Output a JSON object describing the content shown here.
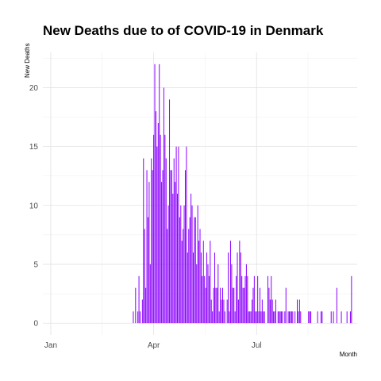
{
  "chart_data": {
    "type": "bar",
    "title": "New Deaths due to of COVID-19 in Denmark",
    "xlabel": "Month",
    "ylabel": "New Deaths",
    "color": "#8b00ff",
    "ylim": [
      -1,
      23
    ],
    "yticks": [
      0,
      5,
      10,
      15,
      20
    ],
    "xlim": [
      "2019-12-25",
      "2020-09-28"
    ],
    "xticks": [
      {
        "date": "2020-01-01",
        "label": "Jan"
      },
      {
        "date": "2020-04-01",
        "label": "Apr"
      },
      {
        "date": "2020-07-01",
        "label": "Jul"
      }
    ],
    "grid": true,
    "x": [
      "2020-03-14",
      "2020-03-15",
      "2020-03-16",
      "2020-03-17",
      "2020-03-18",
      "2020-03-19",
      "2020-03-20",
      "2020-03-21",
      "2020-03-22",
      "2020-03-23",
      "2020-03-24",
      "2020-03-25",
      "2020-03-26",
      "2020-03-27",
      "2020-03-28",
      "2020-03-29",
      "2020-03-30",
      "2020-03-31",
      "2020-04-01",
      "2020-04-02",
      "2020-04-03",
      "2020-04-04",
      "2020-04-05",
      "2020-04-06",
      "2020-04-07",
      "2020-04-08",
      "2020-04-09",
      "2020-04-10",
      "2020-04-11",
      "2020-04-12",
      "2020-04-13",
      "2020-04-14",
      "2020-04-15",
      "2020-04-16",
      "2020-04-17",
      "2020-04-18",
      "2020-04-19",
      "2020-04-20",
      "2020-04-21",
      "2020-04-22",
      "2020-04-23",
      "2020-04-24",
      "2020-04-25",
      "2020-04-26",
      "2020-04-27",
      "2020-04-28",
      "2020-04-29",
      "2020-04-30",
      "2020-05-01",
      "2020-05-02",
      "2020-05-03",
      "2020-05-04",
      "2020-05-05",
      "2020-05-06",
      "2020-05-07",
      "2020-05-08",
      "2020-05-09",
      "2020-05-10",
      "2020-05-11",
      "2020-05-12",
      "2020-05-13",
      "2020-05-14",
      "2020-05-15",
      "2020-05-16",
      "2020-05-17",
      "2020-05-18",
      "2020-05-19",
      "2020-05-20",
      "2020-05-21",
      "2020-05-22",
      "2020-05-23",
      "2020-05-24",
      "2020-05-25",
      "2020-05-26",
      "2020-05-27",
      "2020-05-28",
      "2020-05-29",
      "2020-05-30",
      "2020-05-31",
      "2020-06-01",
      "2020-06-02",
      "2020-06-03",
      "2020-06-04",
      "2020-06-05",
      "2020-06-06",
      "2020-06-07",
      "2020-06-08",
      "2020-06-09",
      "2020-06-10",
      "2020-06-11",
      "2020-06-12",
      "2020-06-13",
      "2020-06-14",
      "2020-06-15",
      "2020-06-16",
      "2020-06-17",
      "2020-06-18",
      "2020-06-19",
      "2020-06-20",
      "2020-06-21",
      "2020-06-22",
      "2020-06-23",
      "2020-06-24",
      "2020-06-25",
      "2020-06-26",
      "2020-06-27",
      "2020-06-28",
      "2020-06-29",
      "2020-06-30",
      "2020-07-01",
      "2020-07-02",
      "2020-07-03",
      "2020-07-04",
      "2020-07-05",
      "2020-07-06",
      "2020-07-07",
      "2020-07-08",
      "2020-07-09",
      "2020-07-10",
      "2020-07-11",
      "2020-07-12",
      "2020-07-13",
      "2020-07-14",
      "2020-07-15",
      "2020-07-16",
      "2020-07-17",
      "2020-07-18",
      "2020-07-19",
      "2020-07-20",
      "2020-07-21",
      "2020-07-22",
      "2020-07-23",
      "2020-07-24",
      "2020-07-25",
      "2020-07-26",
      "2020-07-27",
      "2020-07-28",
      "2020-07-29",
      "2020-07-30",
      "2020-07-31",
      "2020-08-01",
      "2020-08-02",
      "2020-08-03",
      "2020-08-04",
      "2020-08-05",
      "2020-08-06",
      "2020-08-07",
      "2020-08-08",
      "2020-08-09",
      "2020-08-10",
      "2020-08-11",
      "2020-08-12",
      "2020-08-13",
      "2020-08-14",
      "2020-08-15",
      "2020-08-16",
      "2020-08-17",
      "2020-08-18",
      "2020-08-19",
      "2020-08-20",
      "2020-08-21",
      "2020-08-22",
      "2020-08-23",
      "2020-08-24",
      "2020-08-25",
      "2020-08-26",
      "2020-08-27",
      "2020-08-28",
      "2020-08-29",
      "2020-08-30",
      "2020-08-31",
      "2020-09-01",
      "2020-09-02",
      "2020-09-03",
      "2020-09-04",
      "2020-09-05",
      "2020-09-06",
      "2020-09-07",
      "2020-09-08",
      "2020-09-09",
      "2020-09-10",
      "2020-09-11",
      "2020-09-12",
      "2020-09-13",
      "2020-09-14",
      "2020-09-15",
      "2020-09-16",
      "2020-09-17",
      "2020-09-18",
      "2020-09-19",
      "2020-09-20",
      "2020-09-21",
      "2020-09-22",
      "2020-09-23"
    ],
    "values": [
      1,
      0,
      3,
      0,
      1,
      4,
      1,
      0,
      2,
      14,
      8,
      3,
      13,
      9,
      12,
      5,
      14,
      13,
      16,
      22,
      18,
      15,
      17,
      22,
      16,
      12,
      13,
      20,
      16,
      14,
      8,
      10,
      19,
      13,
      13,
      11,
      14,
      12,
      15,
      11,
      15,
      9,
      10,
      7,
      8,
      10,
      13,
      15,
      6,
      8,
      9,
      11,
      10,
      6,
      9,
      9,
      5,
      10,
      7,
      8,
      6,
      4,
      7,
      4,
      3,
      6,
      5,
      4,
      7,
      2,
      1,
      3,
      6,
      3,
      3,
      5,
      1,
      3,
      2,
      3,
      2,
      1,
      0,
      2,
      6,
      1,
      7,
      5,
      3,
      3,
      1,
      4,
      6,
      2,
      7,
      6,
      4,
      3,
      3,
      4,
      5,
      4,
      1,
      1,
      1,
      2,
      3,
      4,
      1,
      1,
      4,
      1,
      3,
      1,
      2,
      1,
      1,
      0,
      0,
      4,
      3,
      2,
      4,
      2,
      1,
      1,
      2,
      0,
      1,
      1,
      1,
      1,
      1,
      0,
      1,
      3,
      0,
      1,
      1,
      1,
      1,
      1,
      0,
      1,
      0,
      2,
      1,
      2,
      1,
      0,
      0,
      0,
      0,
      0,
      0,
      1,
      1,
      1,
      0,
      0,
      0,
      0,
      0,
      1,
      0,
      0,
      1,
      1,
      0,
      0,
      0,
      0,
      0,
      0,
      0,
      1,
      0,
      1,
      0,
      0,
      3,
      0,
      0,
      0,
      1,
      0,
      0,
      0,
      0,
      1,
      0,
      0,
      1,
      4
    ]
  }
}
